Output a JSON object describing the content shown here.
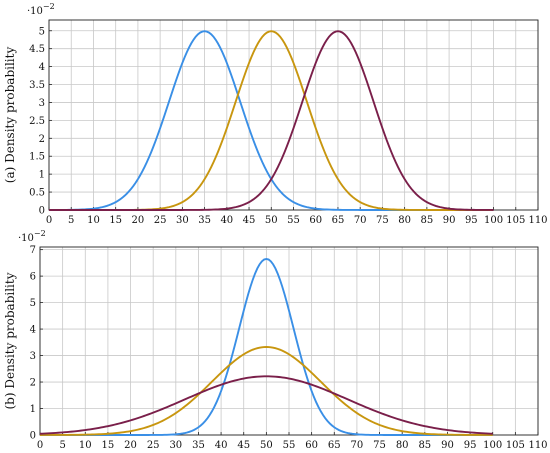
{
  "chart_data": [
    {
      "type": "line",
      "panel_label": "(a) Density probability",
      "ylabel": "(a) Density probability",
      "y_exponent_label": "·10−2",
      "xlim": [
        0,
        110
      ],
      "ylim": [
        0,
        5.3
      ],
      "x_ticks": [
        "0",
        "5",
        "10",
        "15",
        "20",
        "25",
        "30",
        "35",
        "40",
        "45",
        "50",
        "55",
        "60",
        "65",
        "70",
        "75",
        "80",
        "85",
        "90",
        "95",
        "100",
        "105",
        "110"
      ],
      "y_ticks": [
        "0",
        "0.5",
        "1",
        "1.5",
        "2",
        "2.5",
        "3",
        "3.5",
        "4",
        "4.5",
        "5"
      ],
      "y_tick_values": [
        0,
        0.5,
        1,
        1.5,
        2,
        2.5,
        3,
        3.5,
        4,
        4.5,
        5
      ],
      "grid": true,
      "series": [
        {
          "mean": 35,
          "sd": 8,
          "color": "#3a8fe6",
          "x_range": [
            0,
            100
          ]
        },
        {
          "mean": 50,
          "sd": 8,
          "color": "#c8960f",
          "x_range": [
            0,
            100
          ]
        },
        {
          "mean": 65,
          "sd": 8,
          "color": "#7a1f4a",
          "x_range": [
            0,
            100
          ]
        }
      ]
    },
    {
      "type": "line",
      "panel_label": "(b) Density probability",
      "ylabel": "(b) Density probability",
      "y_exponent_label": "·10−2",
      "xlim": [
        0,
        110
      ],
      "ylim": [
        0,
        7.1
      ],
      "x_ticks": [
        "0",
        "5",
        "10",
        "15",
        "20",
        "25",
        "30",
        "35",
        "40",
        "45",
        "50",
        "55",
        "60",
        "65",
        "70",
        "75",
        "80",
        "85",
        "90",
        "95",
        "100",
        "105",
        "110"
      ],
      "y_ticks": [
        "0",
        "1",
        "2",
        "3",
        "4",
        "5",
        "6",
        "7"
      ],
      "y_tick_values": [
        0,
        1,
        2,
        3,
        4,
        5,
        6,
        7
      ],
      "grid": true,
      "series": [
        {
          "mean": 50,
          "sd": 6,
          "color": "#3a8fe6",
          "x_range": [
            0,
            100
          ]
        },
        {
          "mean": 50,
          "sd": 12,
          "color": "#c8960f",
          "x_range": [
            0,
            100
          ]
        },
        {
          "mean": 50,
          "sd": 18,
          "color": "#7a1f4a",
          "x_range": [
            0,
            100
          ]
        }
      ]
    }
  ]
}
